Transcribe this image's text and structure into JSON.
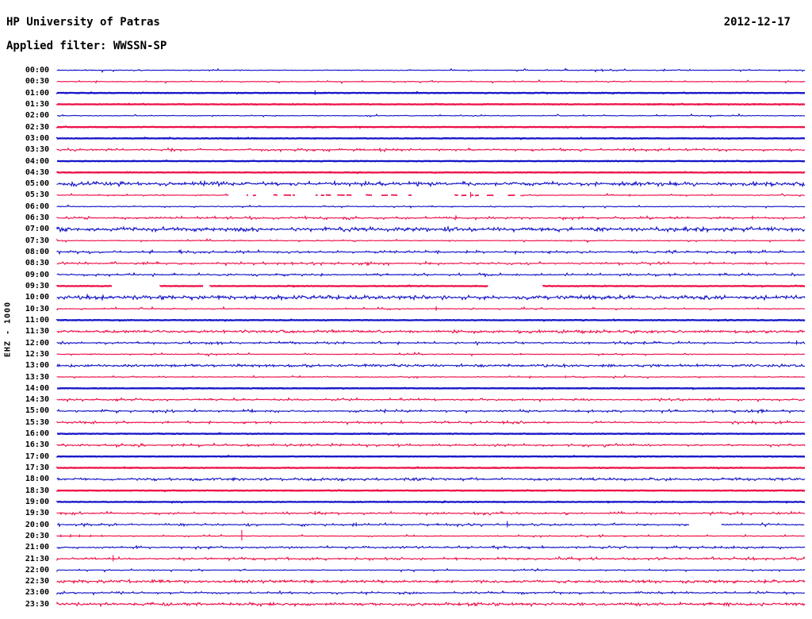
{
  "header": {
    "station": "HP University of Patras",
    "date": "2012-12-17",
    "filter_line": "Applied filter: WWSSN-SP"
  },
  "colors": {
    "trace_blue": "#1616c8",
    "trace_red": "#ee1148",
    "text": "#000000",
    "background": "#ffffff"
  },
  "chart_data": {
    "type": "line",
    "subtype": "helicorder-seismogram",
    "title": "HP University of Patras",
    "date": "2012-12-17",
    "filter": "WWSSN-SP",
    "channel_scale_label": "EHZ - 1000",
    "row_interval_minutes": 30,
    "first_row_label": "00:00",
    "last_row_label": "23:30",
    "legend": "alternating trace colors: hour rows blue, half-hour rows red; noise 0=quiet solid, 3=strong microseismic noise; gaps=data dropouts; spikes=local events (x fraction of row, amplitude px)",
    "rows": [
      {
        "label": "00:00",
        "color": "blue",
        "noise": 1,
        "spikes": [],
        "gaps": [],
        "sparse": []
      },
      {
        "label": "00:30",
        "color": "red",
        "noise": 1,
        "spikes": [],
        "gaps": [],
        "sparse": []
      },
      {
        "label": "01:00",
        "color": "blue",
        "noise": 0,
        "spikes": [
          [
            0.345,
            3.2
          ]
        ],
        "gaps": [],
        "sparse": []
      },
      {
        "label": "01:30",
        "color": "red",
        "noise": 0,
        "spikes": [],
        "gaps": [],
        "sparse": []
      },
      {
        "label": "02:00",
        "color": "blue",
        "noise": 1,
        "spikes": [],
        "gaps": [],
        "sparse": []
      },
      {
        "label": "02:30",
        "color": "red",
        "noise": 0,
        "spikes": [],
        "gaps": [],
        "sparse": []
      },
      {
        "label": "03:00",
        "color": "blue",
        "noise": 0,
        "spikes": [],
        "gaps": [],
        "sparse": []
      },
      {
        "label": "03:30",
        "color": "red",
        "noise": 2,
        "spikes": [],
        "gaps": [],
        "sparse": []
      },
      {
        "label": "04:00",
        "color": "blue",
        "noise": 0,
        "spikes": [],
        "gaps": [],
        "sparse": []
      },
      {
        "label": "04:30",
        "color": "red",
        "noise": 0,
        "spikes": [],
        "gaps": [],
        "sparse": []
      },
      {
        "label": "05:00",
        "color": "blue",
        "noise": 3,
        "amp": 3.2,
        "spikes": [],
        "gaps": [],
        "sparse": []
      },
      {
        "label": "05:30",
        "color": "red",
        "noise": 1,
        "spikes": [
          [
            0.553,
            4
          ]
        ],
        "gaps": [],
        "sparse": [
          [
            0.23,
            0.62
          ]
        ]
      },
      {
        "label": "06:00",
        "color": "blue",
        "noise": 1,
        "spikes": [],
        "gaps": [],
        "sparse": []
      },
      {
        "label": "06:30",
        "color": "red",
        "noise": 2,
        "spikes": [
          [
            0.93,
            2.8
          ]
        ],
        "gaps": [],
        "sparse": []
      },
      {
        "label": "07:00",
        "color": "blue",
        "noise": 3,
        "amp": 3.2,
        "spikes": [],
        "gaps": [],
        "sparse": []
      },
      {
        "label": "07:30",
        "color": "red",
        "noise": 1,
        "spikes": [],
        "gaps": [],
        "sparse": []
      },
      {
        "label": "08:00",
        "color": "blue",
        "noise": 2,
        "spikes": [],
        "gaps": [],
        "sparse": []
      },
      {
        "label": "08:30",
        "color": "red",
        "noise": 2,
        "spikes": [],
        "gaps": [],
        "sparse": []
      },
      {
        "label": "09:00",
        "color": "blue",
        "noise": 2,
        "spikes": [],
        "gaps": [],
        "sparse": []
      },
      {
        "label": "09:30",
        "color": "red",
        "noise": 0,
        "spikes": [],
        "gaps": [
          [
            0.074,
            0.138
          ],
          [
            0.196,
            0.205
          ],
          [
            0.577,
            0.65
          ]
        ],
        "sparse": []
      },
      {
        "label": "10:00",
        "color": "blue",
        "noise": 3,
        "amp": 3.2,
        "spikes": [],
        "gaps": [],
        "sparse": []
      },
      {
        "label": "10:30",
        "color": "red",
        "noise": 1,
        "spikes": [
          [
            0.507,
            3.2
          ]
        ],
        "gaps": [],
        "sparse": []
      },
      {
        "label": "11:00",
        "color": "blue",
        "noise": 0,
        "spikes": [],
        "gaps": [],
        "sparse": []
      },
      {
        "label": "11:30",
        "color": "red",
        "noise": 3,
        "amp": 2.2,
        "spikes": [],
        "gaps": [],
        "sparse": []
      },
      {
        "label": "12:00",
        "color": "blue",
        "noise": 2,
        "spikes": [
          [
            0.989,
            3.2
          ]
        ],
        "gaps": [],
        "sparse": []
      },
      {
        "label": "12:30",
        "color": "red",
        "noise": 1,
        "spikes": [
          [
            0.4,
            1.4
          ],
          [
            0.62,
            1.4
          ],
          [
            0.73,
            1.4
          ]
        ],
        "gaps": [],
        "sparse": []
      },
      {
        "label": "13:00",
        "color": "blue",
        "noise": 3,
        "amp": 2.0,
        "spikes": [],
        "gaps": [],
        "sparse": []
      },
      {
        "label": "13:30",
        "color": "red",
        "noise": 1,
        "spikes": [
          [
            0.68,
            1.8
          ]
        ],
        "gaps": [],
        "sparse": []
      },
      {
        "label": "14:00",
        "color": "blue",
        "noise": 0,
        "spikes": [],
        "gaps": [],
        "sparse": []
      },
      {
        "label": "14:30",
        "color": "red",
        "noise": 2,
        "spikes": [],
        "gaps": [],
        "sparse": []
      },
      {
        "label": "15:00",
        "color": "blue",
        "noise": 2,
        "spikes": [],
        "gaps": [],
        "sparse": []
      },
      {
        "label": "15:30",
        "color": "red",
        "noise": 2,
        "spikes": [],
        "gaps": [],
        "sparse": []
      },
      {
        "label": "16:00",
        "color": "blue",
        "noise": 0,
        "spikes": [],
        "gaps": [],
        "sparse": []
      },
      {
        "label": "16:30",
        "color": "red",
        "noise": 2,
        "spikes": [],
        "gaps": [],
        "sparse": []
      },
      {
        "label": "17:00",
        "color": "blue",
        "noise": 0,
        "spikes": [],
        "gaps": [],
        "sparse": []
      },
      {
        "label": "17:30",
        "color": "red",
        "noise": 0,
        "spikes": [
          [
            0.09,
            2
          ]
        ],
        "gaps": [],
        "sparse": []
      },
      {
        "label": "18:00",
        "color": "blue",
        "noise": 3,
        "amp": 2.0,
        "spikes": [],
        "gaps": [],
        "sparse": []
      },
      {
        "label": "18:30",
        "color": "red",
        "noise": 0,
        "spikes": [],
        "gaps": [],
        "sparse": []
      },
      {
        "label": "19:00",
        "color": "blue",
        "noise": 0,
        "spikes": [],
        "gaps": [],
        "sparse": []
      },
      {
        "label": "19:30",
        "color": "red",
        "noise": 2,
        "spikes": [
          [
            0.345,
            2.8
          ]
        ],
        "gaps": [],
        "sparse": []
      },
      {
        "label": "20:00",
        "color": "blue",
        "noise": 2,
        "spikes": [
          [
            0.4,
            2.8
          ],
          [
            0.602,
            4.5
          ]
        ],
        "gaps": [
          [
            0.846,
            0.889
          ]
        ],
        "sparse": []
      },
      {
        "label": "20:30",
        "color": "red",
        "noise": 1,
        "spikes": [
          [
            0.005,
            2
          ],
          [
            0.018,
            2.4
          ],
          [
            0.03,
            2
          ],
          [
            0.045,
            1.8
          ],
          [
            0.06,
            1.6
          ],
          [
            0.247,
            7.5
          ]
        ],
        "gaps": [],
        "sparse": []
      },
      {
        "label": "21:00",
        "color": "blue",
        "noise": 2,
        "spikes": [
          [
            0.88,
            2
          ],
          [
            0.905,
            2.2
          ]
        ],
        "gaps": [],
        "sparse": []
      },
      {
        "label": "21:30",
        "color": "red",
        "noise": 2,
        "spikes": [
          [
            0.075,
            4.5
          ]
        ],
        "gaps": [],
        "sparse": []
      },
      {
        "label": "22:00",
        "color": "blue",
        "noise": 1,
        "spikes": [],
        "gaps": [],
        "sparse": []
      },
      {
        "label": "22:30",
        "color": "red",
        "noise": 3,
        "amp": 2.2,
        "spikes": [],
        "gaps": [],
        "sparse": []
      },
      {
        "label": "23:00",
        "color": "blue",
        "noise": 2,
        "spikes": [],
        "gaps": [],
        "sparse": []
      },
      {
        "label": "23:30",
        "color": "red",
        "noise": 3,
        "amp": 2.4,
        "spikes": [],
        "gaps": [],
        "sparse": []
      }
    ]
  }
}
